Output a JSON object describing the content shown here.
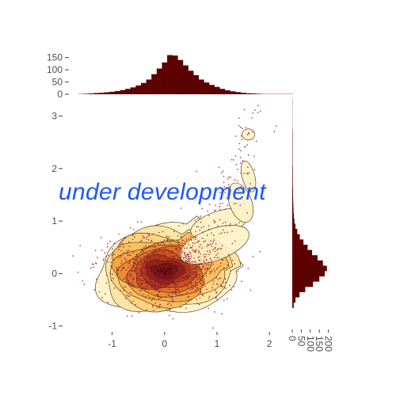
{
  "watermark": "under development",
  "colors": {
    "histogram": "#5c0000",
    "contour_levels": [
      "#fff2c7",
      "#fde4a0",
      "#fcd27c",
      "#f9bd5c",
      "#f4a444",
      "#ec8a33",
      "#df6d26",
      "#cc501c",
      "#b43617",
      "#961f12",
      "#73100c",
      "#520806"
    ],
    "contour_line": "#3d2b10",
    "points": "#8b1a3a"
  },
  "chart_data": {
    "type": "joint-kde-scatter",
    "main": {
      "xlim": [
        -1.9,
        2.3
      ],
      "ylim": [
        -1.05,
        3.25
      ],
      "xticks": [
        "-1",
        "0",
        "1",
        "2"
      ],
      "yticks": [
        "-1",
        "0",
        "1",
        "2",
        "3"
      ],
      "xtick_values": [
        -1,
        0,
        1,
        2
      ],
      "ytick_values": [
        -1,
        0,
        1,
        2,
        3
      ],
      "density_peak": [
        0.0,
        0.05
      ],
      "contour_levels": 12
    },
    "top_histogram": {
      "yticks": [
        "0",
        "50",
        "100",
        "150"
      ],
      "ytick_values": [
        0,
        50,
        100,
        150
      ],
      "ylim": [
        0,
        165
      ],
      "bin_edges_start": -1.65,
      "bin_width": 0.1,
      "counts": [
        1,
        2,
        3,
        5,
        6,
        8,
        10,
        13,
        17,
        22,
        28,
        36,
        46,
        60,
        82,
        105,
        130,
        160,
        158,
        140,
        118,
        96,
        78,
        60,
        48,
        38,
        30,
        22,
        16,
        12,
        9,
        6,
        4,
        3,
        2,
        1,
        1,
        1,
        1,
        1,
        1
      ]
    },
    "right_histogram": {
      "xticks": [
        "0",
        "50",
        "100",
        "150",
        "200"
      ],
      "xtick_values": [
        0,
        50,
        100,
        150,
        200
      ],
      "xlim": [
        0,
        215
      ],
      "bin_edges_start": -0.65,
      "bin_width": 0.1,
      "counts": [
        8,
        18,
        40,
        72,
        115,
        150,
        180,
        192,
        170,
        140,
        110,
        85,
        62,
        42,
        28,
        18,
        12,
        9,
        7,
        6,
        5,
        4,
        4,
        3,
        3,
        3,
        3,
        2,
        2,
        2,
        2,
        2,
        2,
        2,
        1,
        1,
        1,
        1,
        1,
        1
      ]
    }
  }
}
